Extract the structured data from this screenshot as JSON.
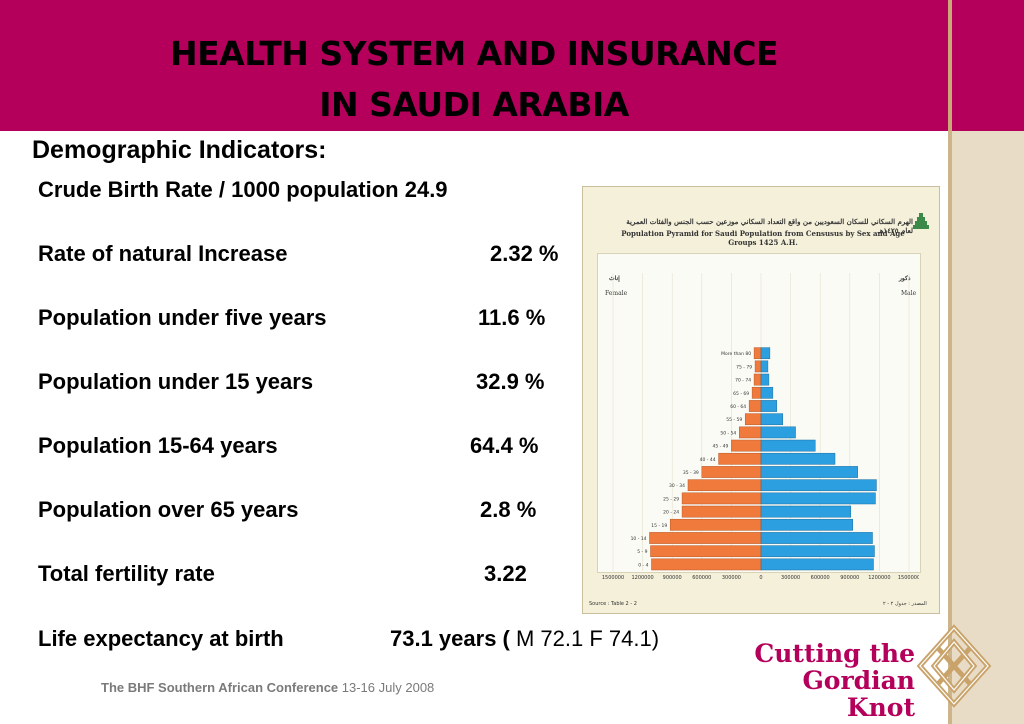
{
  "header": {
    "title_line1": "HEALTH SYSTEM AND INSURANCE",
    "title_line2": "IN SAUDI ARABIA"
  },
  "subtitle": "Demographic Indicators:",
  "indicators": [
    {
      "label": "Crude Birth Rate / 1000 population 24.9",
      "value": "",
      "extra": ""
    },
    {
      "label": "Rate of natural Increase",
      "value": "2.32 %",
      "extra": ""
    },
    {
      "label": "Population under five years",
      "value": "11.6 %",
      "extra": ""
    },
    {
      "label": "Population under 15 years",
      "value": "32.9 %",
      "extra": ""
    },
    {
      "label": "Population 15-64 years",
      "value": "64.4 %",
      "extra": ""
    },
    {
      "label": "Population over 65 years",
      "value": "2.8 %",
      "extra": ""
    },
    {
      "label": "Total fertility rate",
      "value": "3.22",
      "extra": ""
    },
    {
      "label": "Life expectancy at birth",
      "value": "73.1 years (",
      "extra": " M 72.1  F 74.1)"
    }
  ],
  "pyramid": {
    "title_ar": "الهرم السكاني للسكان السعوديين من واقع التعداد السكاني موزعين حسب الجنس والفئات العمرية لعام ١٤٢٥هـ",
    "title_en": "Population Pyramid for Saudi Population from Censusus by Sex and Age Groups 1425 A.H.",
    "female_ar": "إناث",
    "female_en": "Female",
    "male_ar": "ذكور",
    "male_en": "Male",
    "source": "Source : Table 2 - 2",
    "source_ar": "المصدر : جدول ٢ - ٢",
    "colors": {
      "female": "#f07a3c",
      "male": "#2c9fe0"
    }
  },
  "chart_data": {
    "type": "bar",
    "title": "Population Pyramid for Saudi Population from Censusus by Sex and Age Groups 1425 A.H.",
    "categories": [
      "0 - 4",
      "5 - 9",
      "10 - 14",
      "15 - 19",
      "20 - 24",
      "25 - 29",
      "30 - 34",
      "35 - 39",
      "40 - 44",
      "45 - 49",
      "50 - 54",
      "55 - 59",
      "60 - 64",
      "65 - 69",
      "70 - 74",
      "75 - 79",
      "More than 80"
    ],
    "series": [
      {
        "name": "Female",
        "values": [
          1110000,
          1120000,
          1130000,
          920000,
          800000,
          800000,
          740000,
          600000,
          430000,
          300000,
          220000,
          160000,
          120000,
          90000,
          70000,
          60000,
          70000
        ]
      },
      {
        "name": "Male",
        "values": [
          1140000,
          1150000,
          1130000,
          930000,
          910000,
          1160000,
          1170000,
          980000,
          750000,
          550000,
          350000,
          220000,
          160000,
          120000,
          80000,
          70000,
          90000
        ]
      }
    ],
    "x_ticks": [
      "1500000",
      "1200000",
      "900000",
      "600000",
      "300000",
      "0",
      "300000",
      "600000",
      "900000",
      "1200000",
      "1500000"
    ],
    "xlim": [
      -1500000,
      1500000
    ],
    "grid": true
  },
  "footer": {
    "conference": "The BHF Southern African Conference",
    "dates": " 13-16 July 2008"
  },
  "brand": {
    "line1": "Cutting the",
    "line2": "Gordian Knot",
    "accent": "#b5005b"
  }
}
